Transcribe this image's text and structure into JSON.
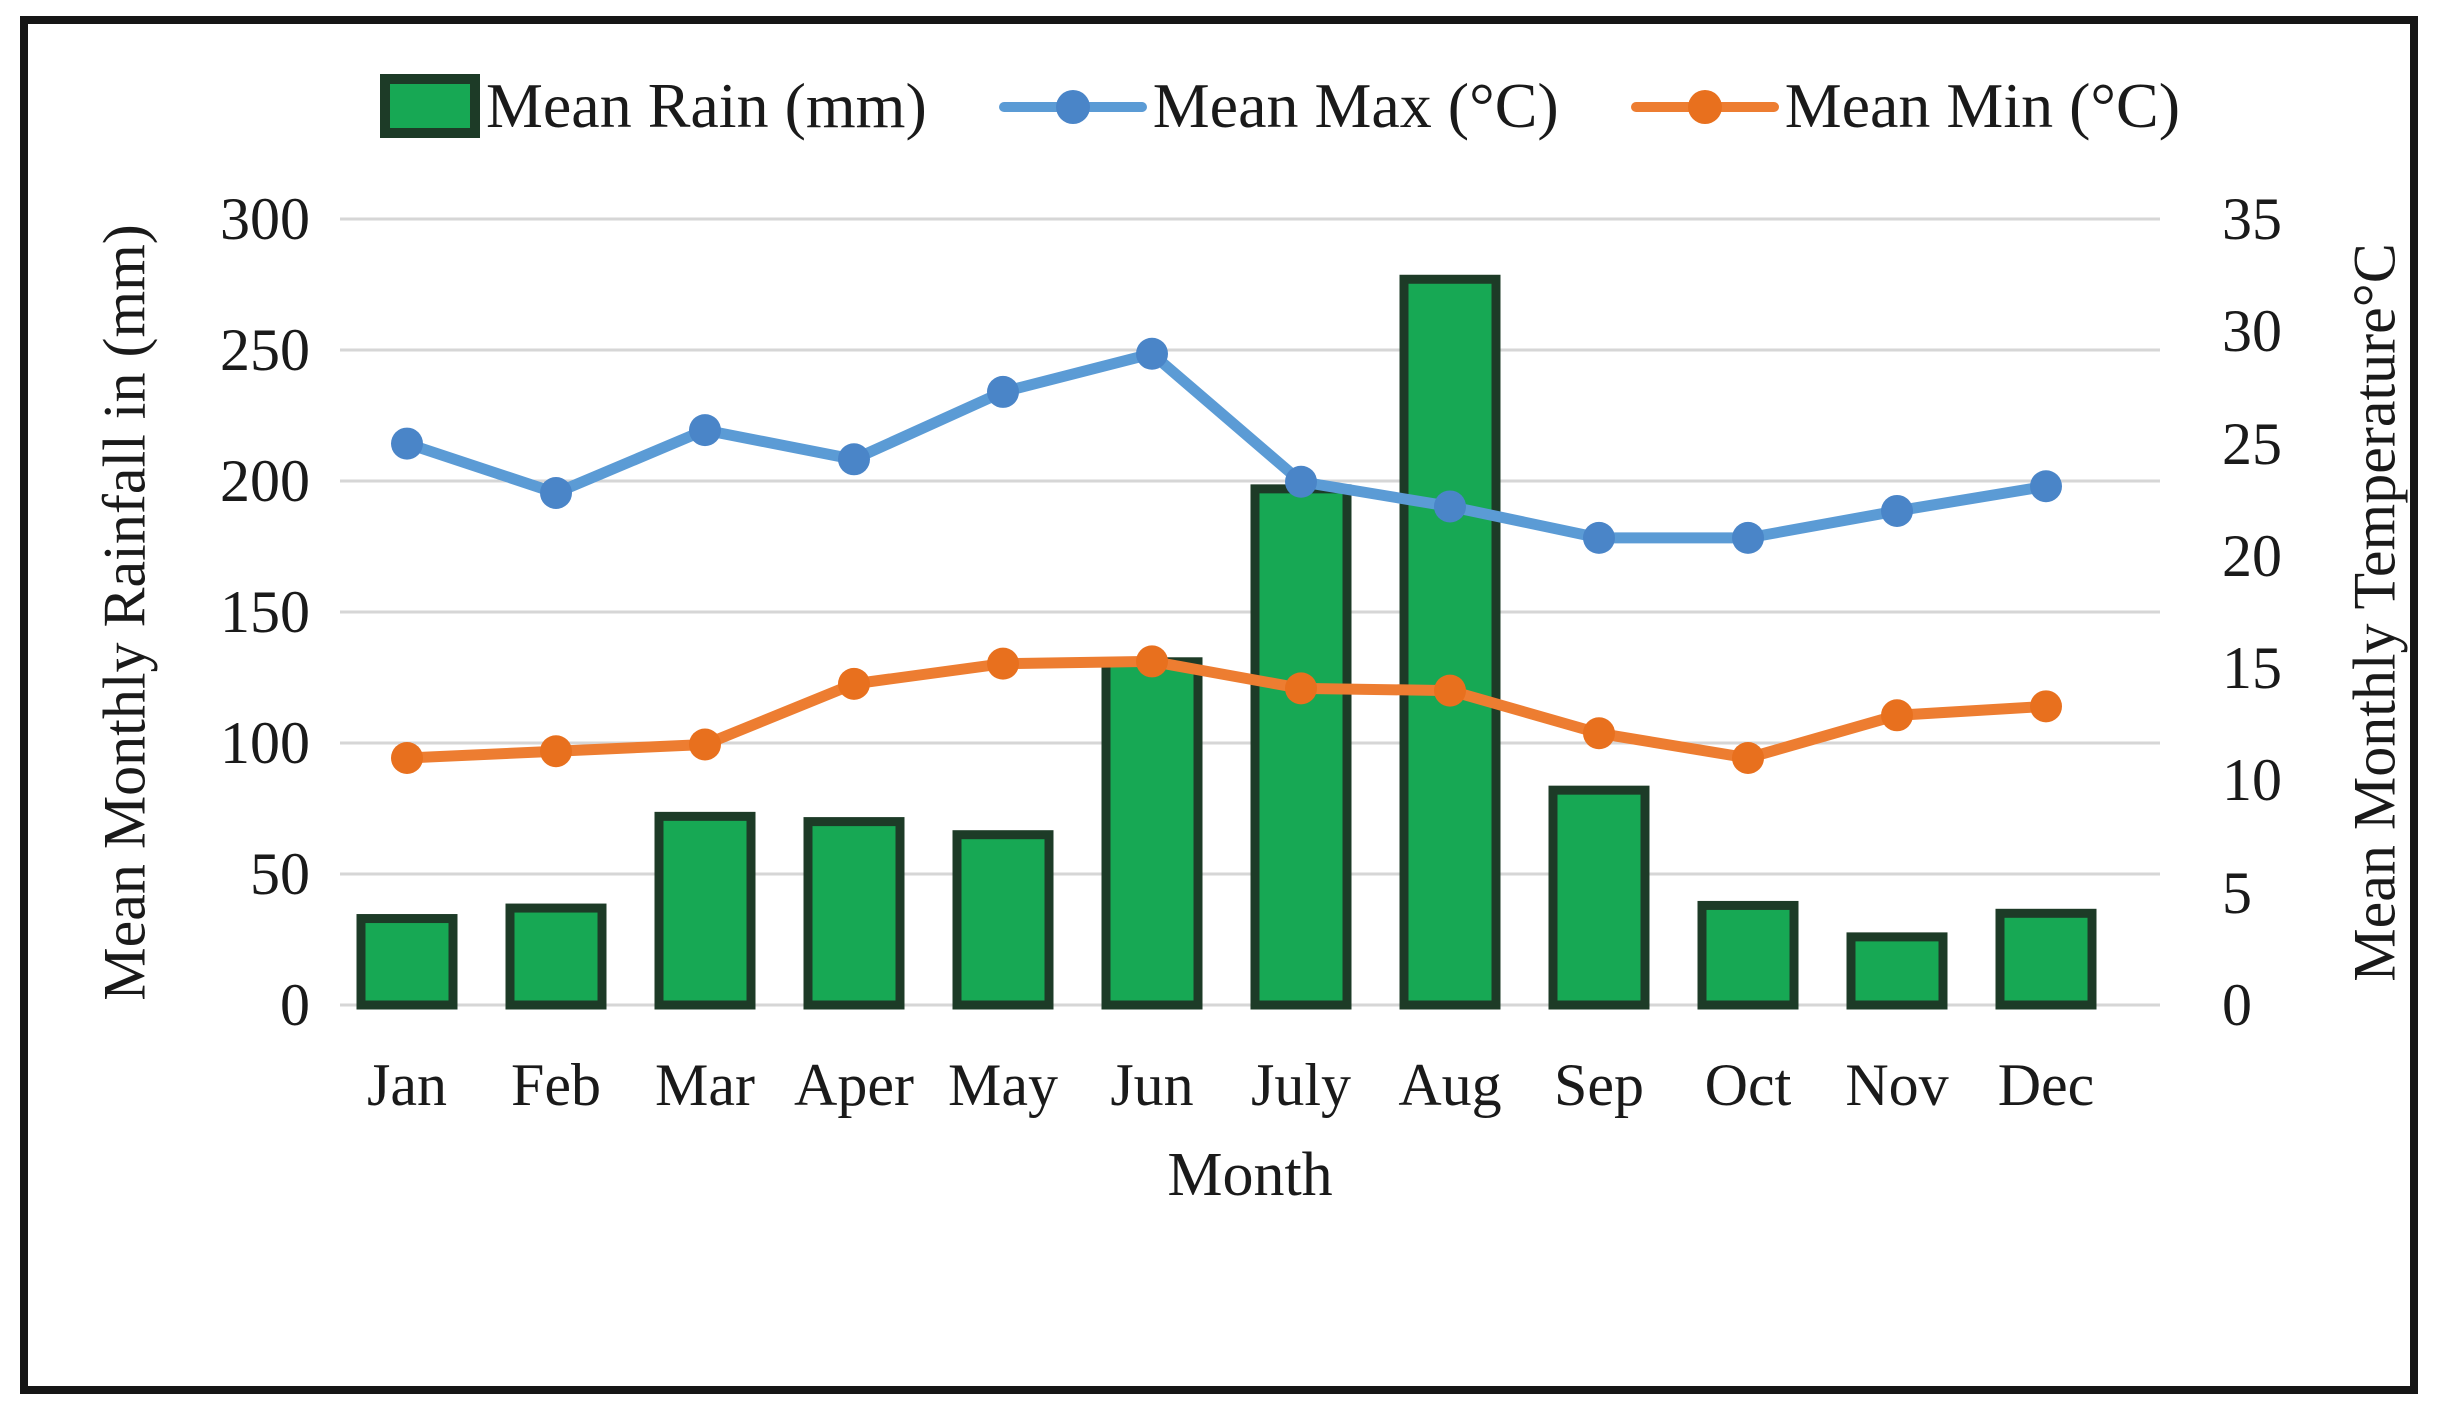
{
  "legend": {
    "items": [
      {
        "label": "Mean Rain (mm)",
        "swatch": "bar"
      },
      {
        "label": "Mean Max (°C)",
        "swatch": "line"
      },
      {
        "label": "Mean Min (°C)",
        "swatch": "line"
      }
    ]
  },
  "chart_data": {
    "type": "combo-bar-line",
    "categories": [
      "Jan",
      "Feb",
      "Mar",
      "Aper",
      "May",
      "Jun",
      "July",
      "Aug",
      "Sep",
      "Oct",
      "Nov",
      "Dec"
    ],
    "series": [
      {
        "name": "Mean Rain (mm)",
        "type": "bar",
        "axis": "left",
        "color": "#17a854",
        "border_color": "#1d3b27",
        "values": [
          33,
          37,
          72,
          70,
          65,
          131,
          197,
          277,
          82,
          38,
          26,
          35
        ]
      },
      {
        "name": "Mean Max (°C)",
        "type": "line",
        "axis": "right",
        "color": "#5b9bd5",
        "marker_color": "#4a85c8",
        "values": [
          25.0,
          22.8,
          25.6,
          24.3,
          27.3,
          29.0,
          23.3,
          22.2,
          20.8,
          20.8,
          22.0,
          23.1
        ]
      },
      {
        "name": "Mean Min (°C)",
        "type": "line",
        "axis": "right",
        "color": "#ed7d31",
        "marker_color": "#e8701e",
        "values": [
          11.0,
          11.3,
          11.6,
          14.3,
          15.2,
          15.3,
          14.1,
          14.0,
          12.1,
          11.0,
          12.9,
          13.3
        ]
      }
    ],
    "xlabel": "Month",
    "left_axis": {
      "title": "Mean Monthly Rainfall in (mm)",
      "min": 0,
      "max": 300,
      "step": 50,
      "ticks": [
        0,
        50,
        100,
        150,
        200,
        250,
        300
      ]
    },
    "right_axis": {
      "title": "Mean Monthly Temperature°C",
      "min": 0,
      "max": 35,
      "step": 5,
      "ticks": [
        0,
        5,
        10,
        15,
        20,
        25,
        30,
        35
      ]
    },
    "grid": true,
    "gridline_color": "#d6d6d6",
    "legend_position": "top"
  }
}
